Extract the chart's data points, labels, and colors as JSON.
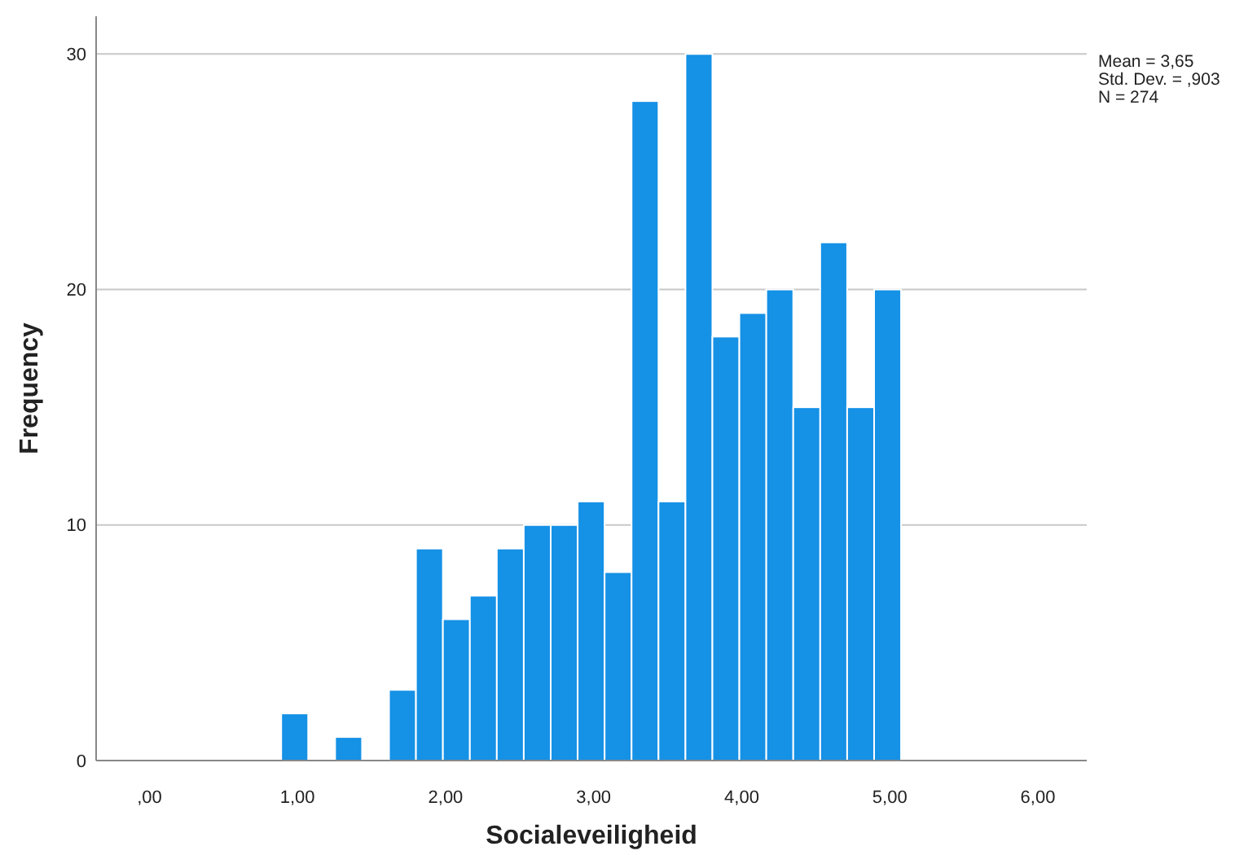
{
  "chart_data": {
    "type": "histogram",
    "xlabel": "Socialeveiligheid",
    "ylabel": "Frequency",
    "bins": [
      0.89,
      1.072,
      1.254,
      1.436,
      1.618,
      1.8,
      1.982,
      2.164,
      2.346,
      2.528,
      2.71,
      2.892,
      3.074,
      3.256,
      3.438,
      3.62,
      3.802,
      3.984,
      4.166,
      4.348,
      4.53,
      4.712,
      4.894,
      5.076
    ],
    "values": [
      2,
      0,
      1,
      0,
      3,
      9,
      6,
      7,
      9,
      10,
      10,
      11,
      8,
      28,
      11,
      30,
      18,
      19,
      20,
      15,
      22,
      15,
      20
    ],
    "color": "#1591e6",
    "xlim": [
      -0.36,
      6.33
    ],
    "xticks": [
      {
        "value": 0,
        "label": ",00"
      },
      {
        "value": 1,
        "label": "1,00"
      },
      {
        "value": 2,
        "label": "2,00"
      },
      {
        "value": 3,
        "label": "3,00"
      },
      {
        "value": 4,
        "label": "4,00"
      },
      {
        "value": 5,
        "label": "5,00"
      },
      {
        "value": 6,
        "label": "6,00"
      }
    ],
    "ylim": [
      0,
      31.6
    ],
    "yticks": [
      0,
      10,
      20,
      30
    ],
    "grid": "y",
    "annotations": [
      "Mean = 3,65",
      "Std. Dev. = ,903",
      "N = 274"
    ]
  }
}
